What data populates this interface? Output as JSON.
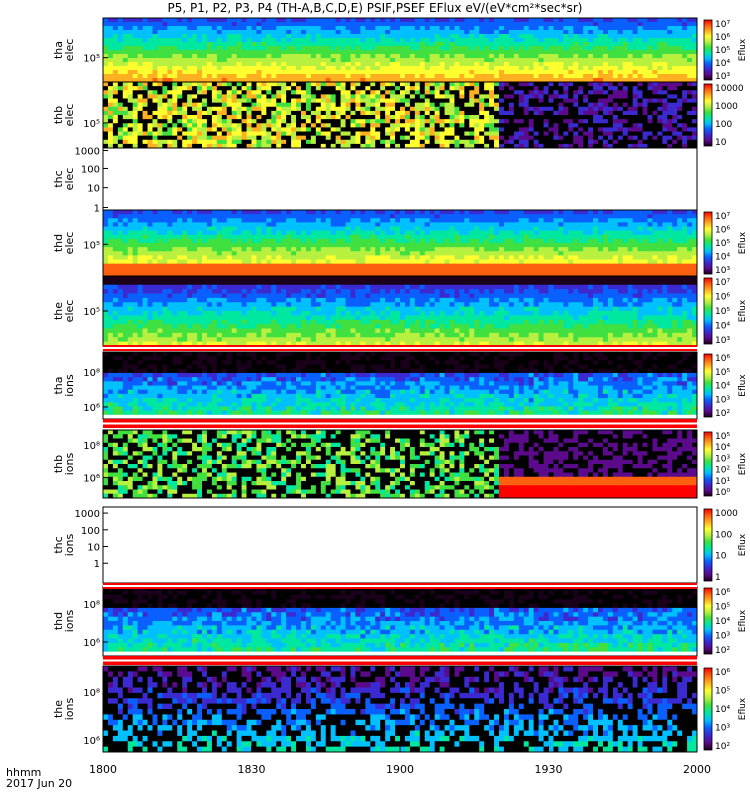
{
  "title": "P5, P1, P2, P3, P4 (TH-A,B,C,D,E) PSIF,PSEF EFlux eV/(eV*cm²*sec*sr)",
  "footer": {
    "time_label": "hhmm",
    "date_label": "2017 Jun 20"
  },
  "colors": {
    "colortable": [
      "#1a001a",
      "#5a0a8a",
      "#3a2ad0",
      "#0a60ff",
      "#00c0ff",
      "#00e8a0",
      "#40e040",
      "#b8f040",
      "#ffff30",
      "#ffb020",
      "#ff6010",
      "#ff0000"
    ],
    "fill_band": "#ff0000",
    "blank": "#ffffff",
    "missing": "#000000"
  },
  "chart_data": [
    {
      "type": "heatmap",
      "panel": "tha-elec",
      "ylabel": [
        "tha",
        "elec"
      ],
      "y_ticks": [
        {
          "label": "10⁵",
          "frac": 0.62
        }
      ],
      "cb_label": "Eflux",
      "cb_ticks": [
        "10⁷",
        "10⁶",
        "10⁵",
        "10⁴",
        "10³"
      ],
      "pattern": "electrons",
      "data_until": "2000"
    },
    {
      "type": "heatmap",
      "panel": "thb-elec",
      "ylabel": [
        "thb",
        "elec"
      ],
      "y_ticks": [
        {
          "label": "10⁵",
          "frac": 0.62
        }
      ],
      "cb_label": "",
      "cb_ticks": [
        "10000",
        "1000",
        "100",
        "10"
      ],
      "pattern": "sparse",
      "data_until": "1920"
    },
    {
      "type": "heatmap",
      "panel": "thc-elec",
      "ylabel": [
        "thc",
        "elec"
      ],
      "y_ticks": [
        {
          "label": "1000",
          "frac": 0.04
        },
        {
          "label": "100",
          "frac": 0.33
        },
        {
          "label": "10",
          "frac": 0.64
        },
        {
          "label": "1",
          "frac": 0.96
        }
      ],
      "cb_label": "",
      "cb_ticks": [],
      "pattern": "empty",
      "data_until": "1800"
    },
    {
      "type": "heatmap",
      "panel": "thd-elec",
      "ylabel": [
        "thd",
        "elec"
      ],
      "y_ticks": [
        {
          "label": "10⁵",
          "frac": 0.52
        }
      ],
      "cb_label": "Eflux",
      "cb_ticks": [
        "10⁷",
        "10⁶",
        "10⁵",
        "10⁴",
        "10³"
      ],
      "pattern": "electrons-hot",
      "data_until": "2000"
    },
    {
      "type": "heatmap",
      "panel": "the-elec",
      "ylabel": [
        "the",
        "elec"
      ],
      "y_ticks": [
        {
          "label": "10⁵",
          "frac": 0.5
        }
      ],
      "cb_label": "Eflux",
      "cb_ticks": [
        "10⁷",
        "10⁶",
        "10⁵",
        "10⁴",
        "10³"
      ],
      "pattern": "electrons-cool",
      "data_until": "2000"
    },
    {
      "type": "heatmap",
      "panel": "tha-ions",
      "ylabel": [
        "tha",
        "ions"
      ],
      "y_ticks": [
        {
          "label": "10⁸",
          "frac": 0.3
        },
        {
          "label": "10⁶",
          "frac": 0.82
        }
      ],
      "cb_label": "Eflux",
      "cb_ticks": [
        "10⁶",
        "10⁵",
        "10⁴",
        "10³",
        "10²"
      ],
      "pattern": "ions",
      "data_until": "2000"
    },
    {
      "type": "heatmap",
      "panel": "thb-ions",
      "ylabel": [
        "thb",
        "ions"
      ],
      "y_ticks": [
        {
          "label": "10⁸",
          "frac": 0.22
        },
        {
          "label": "10⁶",
          "frac": 0.7
        }
      ],
      "cb_label": "Eflux",
      "cb_ticks": [
        "10⁵",
        "10⁴",
        "10³",
        "10²",
        "10¹",
        "10⁰"
      ],
      "pattern": "ions-sparse",
      "data_until": "1920"
    },
    {
      "type": "heatmap",
      "panel": "thc-ions",
      "ylabel": [
        "thc",
        "ions"
      ],
      "y_ticks": [
        {
          "label": "1000",
          "frac": 0.08
        },
        {
          "label": "100",
          "frac": 0.3
        },
        {
          "label": "10",
          "frac": 0.52
        },
        {
          "label": "1",
          "frac": 0.74
        }
      ],
      "cb_label": "Eflux",
      "cb_ticks": [
        "1000",
        "100",
        "10",
        "1"
      ],
      "pattern": "empty",
      "data_until": "1800"
    },
    {
      "type": "heatmap",
      "panel": "thd-ions",
      "ylabel": [
        "thd",
        "ions"
      ],
      "y_ticks": [
        {
          "label": "10⁸",
          "frac": 0.26
        },
        {
          "label": "10⁶",
          "frac": 0.8
        }
      ],
      "cb_label": "Eflux",
      "cb_ticks": [
        "10⁶",
        "10⁵",
        "10⁴",
        "10³",
        "10²"
      ],
      "pattern": "ions",
      "data_until": "2000"
    },
    {
      "type": "heatmap",
      "panel": "the-ions",
      "ylabel": [
        "the",
        "ions"
      ],
      "y_ticks": [
        {
          "label": "10⁸",
          "frac": 0.3
        },
        {
          "label": "10⁶",
          "frac": 0.86
        }
      ],
      "cb_label": "Eflux",
      "cb_ticks": [
        "10⁶",
        "10⁵",
        "10⁴",
        "10³",
        "10²"
      ],
      "pattern": "ions-faint",
      "data_until": "2000"
    }
  ],
  "x_axis": {
    "ticks": [
      "1800",
      "1830",
      "1900",
      "1930",
      "2000"
    ]
  }
}
